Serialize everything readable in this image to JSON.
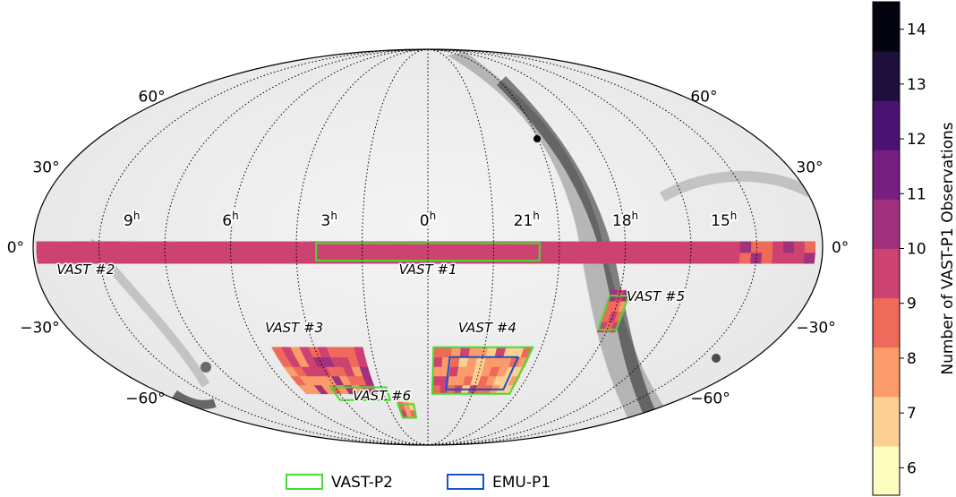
{
  "chart_data": {
    "type": "heatmap",
    "projection": "mollweide",
    "background": "grayscale sky intensity map",
    "grid": true,
    "dec_ticks": [
      {
        "dec": 60,
        "left": "60°",
        "right": "60°"
      },
      {
        "dec": 30,
        "left": "30°",
        "right": "30°"
      },
      {
        "dec": 0,
        "left": "0°",
        "right": "0°"
      },
      {
        "dec": -30,
        "left": "−30°",
        "right": "−30°"
      },
      {
        "dec": -60,
        "left": "−60°",
        "right": "−60°"
      }
    ],
    "ra_ticks": [
      {
        "ra_hours": 9,
        "h": "9",
        "sup": "h"
      },
      {
        "ra_hours": 6,
        "h": "6",
        "sup": "h"
      },
      {
        "ra_hours": 3,
        "h": "3",
        "sup": "h"
      },
      {
        "ra_hours": 0,
        "h": "0",
        "sup": "h"
      },
      {
        "ra_hours": 21,
        "h": "21",
        "sup": "h"
      },
      {
        "ra_hours": 18,
        "h": "18",
        "sup": "h"
      },
      {
        "ra_hours": 15,
        "h": "15",
        "sup": "h"
      }
    ],
    "fields": [
      {
        "label": "VAST #1",
        "ra_range_hours": [
          20.5,
          3.5
        ],
        "dec_range": [
          -6,
          2
        ]
      },
      {
        "label": "VAST #2",
        "ra_range_hours": [
          9.3,
          14.5
        ],
        "dec_range": [
          -6,
          2
        ]
      },
      {
        "label": "VAST #3",
        "ra_range_hours": [
          2.3,
          5.5
        ],
        "dec_range": [
          -58,
          -38
        ]
      },
      {
        "label": "VAST #4",
        "ra_range_hours": [
          20.3,
          23.8
        ],
        "dec_range": [
          -58,
          -38
        ]
      },
      {
        "label": "VAST #5",
        "ra_range_hours": [
          17.7,
          18.3
        ],
        "dec_range": [
          -32,
          -16
        ]
      },
      {
        "label": "VAST #6",
        "ra_range_hours": [
          0.7,
          1.5
        ],
        "dec_range": [
          -70,
          -62
        ]
      }
    ],
    "colorbar": {
      "label": "Number of VAST-P1 Observations",
      "min": 5.5,
      "max": 14.5,
      "ticks": [
        6,
        7,
        8,
        9,
        10,
        11,
        12,
        13,
        14
      ],
      "colors": [
        "#fdfdbf",
        "#fecf93",
        "#fb9b6b",
        "#ef6a5b",
        "#cc4270",
        "#a1307d",
        "#761f7f",
        "#4a1271",
        "#1e0f3c",
        "#040410"
      ]
    },
    "legend": {
      "position": "bottom-center",
      "items": [
        {
          "label": "VAST-P2",
          "color": "#44dd33"
        },
        {
          "label": "EMU-P1",
          "color": "#1555cc"
        }
      ]
    }
  }
}
